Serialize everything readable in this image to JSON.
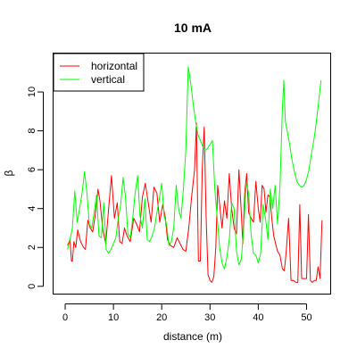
{
  "chart_data": {
    "type": "line",
    "title": "10 mA",
    "xlabel": "distance (m)",
    "ylabel": "β",
    "xlim": [
      -2.5,
      55
    ],
    "ylim": [
      -0.4,
      12
    ],
    "x_ticks": [
      0,
      10,
      20,
      30,
      40,
      50
    ],
    "y_ticks": [
      0,
      2,
      4,
      6,
      8,
      10
    ],
    "grid": false,
    "legend_position": "top-left",
    "series": [
      {
        "name": "horizontal",
        "color": "#ff0000",
        "x": [
          0.5,
          1.0,
          1.3,
          1.5,
          1.8,
          2.2,
          2.6,
          3.2,
          3.8,
          4.2,
          4.7,
          5.2,
          5.7,
          6.3,
          6.8,
          7.2,
          7.8,
          8.4,
          9.0,
          9.6,
          10.2,
          10.8,
          11.3,
          11.8,
          12.3,
          12.8,
          13.5,
          14.2,
          14.8,
          15.4,
          16.0,
          16.6,
          17.2,
          17.8,
          18.4,
          19.0,
          19.6,
          20.2,
          20.7,
          21.2,
          21.8,
          22.5,
          23.2,
          23.8,
          24.4,
          25.0,
          25.6,
          26.2,
          26.8,
          27.2,
          27.6,
          28.0,
          28.4,
          28.8,
          29.2,
          29.6,
          30.0,
          30.4,
          30.8,
          31.2,
          31.6,
          32.0,
          32.5,
          33.0,
          33.5,
          34.0,
          34.5,
          35.0,
          35.5,
          36.0,
          36.4,
          36.8,
          37.2,
          37.6,
          38.0,
          38.5,
          39.0,
          39.5,
          40.0,
          40.4,
          40.8,
          41.2,
          41.6,
          42.0,
          42.4,
          42.8,
          43.2,
          43.6,
          44.0,
          44.5,
          45.0,
          45.4,
          45.8,
          46.3,
          46.8,
          47.3,
          47.8,
          48.2,
          48.6,
          49.0,
          49.5,
          50.0,
          50.4,
          50.8,
          51.2,
          51.6,
          52.0,
          52.4,
          52.8,
          53.2
        ],
        "y": [
          2.1,
          2.4,
          1.3,
          1.3,
          2.3,
          2.0,
          2.9,
          2.3,
          2.0,
          1.9,
          3.4,
          3.0,
          2.8,
          3.8,
          5.0,
          4.4,
          2.9,
          2.2,
          4.0,
          5.7,
          3.5,
          4.3,
          2.3,
          2.2,
          3.0,
          2.6,
          2.3,
          3.5,
          3.2,
          2.8,
          4.6,
          5.3,
          4.3,
          3.3,
          5.1,
          4.8,
          3.3,
          4.2,
          3.6,
          2.4,
          2.1,
          2.0,
          2.5,
          2.2,
          1.9,
          1.8,
          3.0,
          4.6,
          6.0,
          8.4,
          1.3,
          1.3,
          6.0,
          8.2,
          3.5,
          0.6,
          0.3,
          0.2,
          0.5,
          2.0,
          5.2,
          4.2,
          3.0,
          4.4,
          3.5,
          5.8,
          4.0,
          3.0,
          2.7,
          6.0,
          4.2,
          2.2,
          4.8,
          5.8,
          3.8,
          3.5,
          3.3,
          5.4,
          4.0,
          3.3,
          5.2,
          5.0,
          3.8,
          4.7,
          4.6,
          3.5,
          2.6,
          2.2,
          1.8,
          1.6,
          0.9,
          0.8,
          1.8,
          3.5,
          0.3,
          0.3,
          0.2,
          0.2,
          4.2,
          0.4,
          0.4,
          0.4,
          3.7,
          0.3,
          0.2,
          0.3,
          0.3,
          1.0,
          0.4,
          3.4
        ]
      },
      {
        "name": "vertical",
        "color": "#00ff00",
        "x": [
          0.5,
          1.0,
          1.5,
          2.0,
          2.5,
          3.0,
          3.5,
          4.0,
          4.5,
          5.0,
          5.5,
          6.0,
          6.5,
          7.0,
          7.5,
          8.0,
          8.5,
          9.0,
          9.5,
          10.0,
          10.5,
          11.0,
          11.5,
          12.0,
          12.5,
          13.0,
          13.5,
          14.0,
          14.5,
          15.0,
          15.5,
          16.0,
          16.5,
          17.0,
          17.5,
          18.0,
          18.5,
          19.0,
          19.5,
          20.0,
          20.5,
          21.0,
          21.5,
          22.0,
          22.5,
          23.0,
          23.5,
          24.0,
          24.5,
          25.0,
          25.5,
          26.0,
          26.5,
          27.0,
          27.5,
          28.0,
          28.5,
          29.0,
          29.5,
          30.0,
          30.5,
          31.0,
          31.5,
          32.0,
          32.5,
          33.0,
          33.5,
          34.0,
          34.5,
          35.0,
          35.5,
          36.0,
          36.5,
          37.0,
          37.5,
          38.0,
          38.5,
          39.0,
          39.5,
          40.0,
          40.5,
          41.0,
          41.5,
          42.0,
          42.5,
          43.0,
          43.5,
          44.0,
          44.5,
          45.0,
          45.3,
          45.6,
          46.0,
          46.5,
          47.0,
          47.5,
          48.0,
          48.5,
          49.0,
          49.5,
          50.0,
          50.5,
          51.0,
          51.5,
          52.0,
          52.5,
          53.0
        ],
        "y": [
          1.9,
          2.4,
          3.0,
          4.9,
          3.3,
          4.0,
          4.8,
          5.9,
          4.8,
          3.2,
          3.0,
          3.8,
          4.7,
          2.6,
          2.5,
          4.3,
          1.9,
          1.7,
          1.9,
          2.2,
          2.5,
          3.5,
          4.2,
          5.6,
          4.6,
          2.7,
          2.5,
          3.5,
          4.8,
          5.7,
          3.6,
          3.0,
          4.5,
          2.4,
          2.3,
          2.6,
          3.0,
          3.8,
          4.5,
          5.3,
          3.6,
          3.2,
          2.1,
          2.3,
          3.0,
          5.2,
          4.0,
          3.5,
          5.0,
          7.0,
          11.3,
          10.5,
          9.4,
          8.5,
          7.8,
          7.5,
          7.2,
          7.0,
          7.1,
          7.3,
          7.5,
          5.0,
          3.5,
          2.0,
          1.2,
          0.9,
          1.5,
          2.4,
          4.3,
          4.0,
          1.8,
          1.1,
          1.4,
          3.0,
          5.3,
          4.8,
          2.7,
          1.7,
          1.6,
          1.2,
          1.7,
          4.2,
          3.5,
          2.4,
          5.0,
          4.0,
          5.2,
          3.2,
          5.1,
          9.1,
          10.6,
          8.5,
          8.0,
          7.3,
          6.5,
          5.9,
          5.4,
          5.2,
          5.1,
          5.2,
          5.5,
          6.0,
          6.8,
          7.5,
          8.4,
          9.5,
          10.6
        ]
      }
    ]
  }
}
